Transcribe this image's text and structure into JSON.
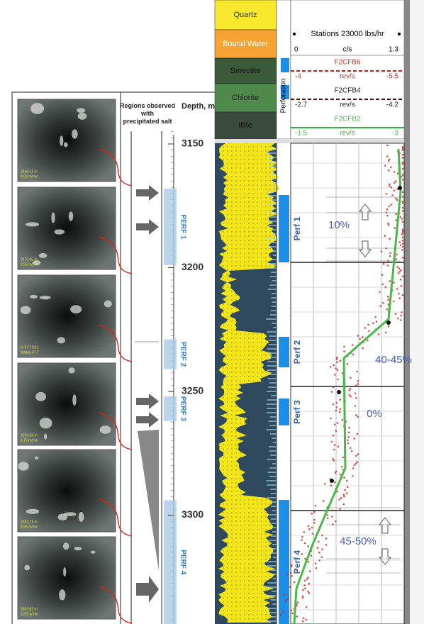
{
  "left_panel": {
    "column_title": "Regions observed with precipitated salt",
    "depth_title": "Depth, m",
    "depth_ticks": [
      3150,
      3200,
      3250,
      3300
    ],
    "perfs": [
      "PERF 1",
      "PERF 2",
      "PERF 3",
      "PERF 4"
    ],
    "photos": [
      [
        "3150.51 m",
        "8.00 m/min"
      ],
      [
        "3175.95 m",
        "2.96 m/min"
      ],
      [
        "m 37.TCCL",
        "station 87.7"
      ],
      [
        "3256.83 m",
        "1.75 m/min"
      ],
      [
        "3282.21 m",
        "5.96 m/min"
      ],
      [
        "3329.82 m",
        "1.85 m/min"
      ]
    ]
  },
  "right_panel": {
    "lithology": [
      "Quartz",
      "Bound Water",
      "Smectite",
      "Chlorite",
      "Illite"
    ],
    "perforation_title": "Perforation",
    "header": {
      "stations": "Stations 23000 lbs/hr",
      "scale": [
        "0",
        "c/s",
        "1.3"
      ],
      "curves": [
        {
          "name": "F2CFB6",
          "left": "-4",
          "unit": "rev/s",
          "right": "-5.5"
        },
        {
          "name": "F2CFB4",
          "left": "-2.7",
          "unit": "rev/s",
          "right": "-4.2"
        },
        {
          "name": "F2CFB2",
          "left": "-1.5",
          "unit": "rev/s",
          "right": "-3"
        }
      ]
    },
    "perfs": [
      "Perf 1",
      "Perf 2",
      "Perf 3",
      "Perf 4"
    ],
    "annotations": [
      "10%",
      "40-45%",
      "0%",
      "45-50%"
    ]
  }
}
